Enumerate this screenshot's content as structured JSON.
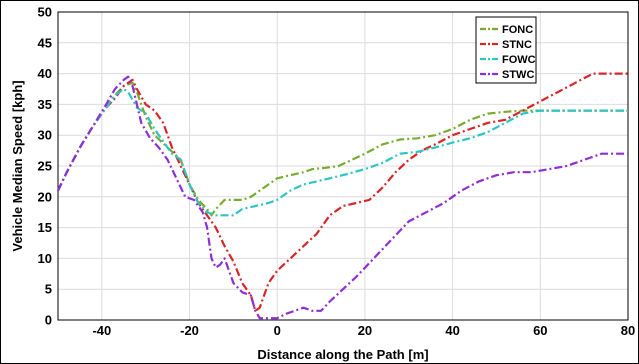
{
  "chart_data": {
    "type": "line",
    "xlabel": "Distance along the Path [m]",
    "ylabel": "Vehicle Median Speed [kph]",
    "xlim": [
      -50,
      80
    ],
    "ylim": [
      0,
      50
    ],
    "xticks": [
      -40,
      -20,
      0,
      20,
      40,
      60,
      80
    ],
    "yticks": [
      0,
      5,
      10,
      15,
      20,
      25,
      30,
      35,
      40,
      45,
      50
    ],
    "grid": true,
    "legend_position": "top-right",
    "series": [
      {
        "name": "FONC",
        "color": "#77ac30",
        "points": [
          [
            -50,
            21
          ],
          [
            -48,
            24
          ],
          [
            -45,
            28
          ],
          [
            -42,
            31.5
          ],
          [
            -39,
            34.5
          ],
          [
            -37,
            36.5
          ],
          [
            -35,
            38
          ],
          [
            -33,
            38.5
          ],
          [
            -32,
            37
          ],
          [
            -30,
            33
          ],
          [
            -28,
            30
          ],
          [
            -25,
            28
          ],
          [
            -22,
            26
          ],
          [
            -20,
            22
          ],
          [
            -18,
            19.5
          ],
          [
            -16,
            18
          ],
          [
            -15,
            17
          ],
          [
            -14,
            18
          ],
          [
            -12,
            19.5
          ],
          [
            -10,
            19.5
          ],
          [
            -8,
            19.5
          ],
          [
            -6,
            20
          ],
          [
            -4,
            21
          ],
          [
            -2,
            22
          ],
          [
            0,
            23
          ],
          [
            3,
            23.5
          ],
          [
            6,
            24
          ],
          [
            8,
            24.5
          ],
          [
            11,
            24.7
          ],
          [
            14,
            25
          ],
          [
            17,
            26
          ],
          [
            20,
            27
          ],
          [
            24,
            28.5
          ],
          [
            28,
            29.3
          ],
          [
            32,
            29.5
          ],
          [
            36,
            30
          ],
          [
            40,
            31
          ],
          [
            44,
            32.5
          ],
          [
            48,
            33.5
          ],
          [
            52,
            33.8
          ],
          [
            56,
            34
          ],
          [
            60,
            34
          ],
          [
            64,
            34
          ],
          [
            70,
            34
          ],
          [
            76,
            34
          ],
          [
            80,
            34
          ]
        ]
      },
      {
        "name": "STNC",
        "color": "#d62728",
        "points": [
          [
            -50,
            21
          ],
          [
            -48,
            24
          ],
          [
            -45,
            28
          ],
          [
            -42,
            31.5
          ],
          [
            -39,
            34.5
          ],
          [
            -37,
            36
          ],
          [
            -35,
            38
          ],
          [
            -33,
            39
          ],
          [
            -32,
            37.5
          ],
          [
            -30,
            35
          ],
          [
            -28,
            34
          ],
          [
            -26,
            32
          ],
          [
            -24,
            28
          ],
          [
            -22,
            25
          ],
          [
            -20,
            22
          ],
          [
            -18,
            19
          ],
          [
            -16,
            17
          ],
          [
            -14,
            15
          ],
          [
            -12,
            12
          ],
          [
            -10,
            9.5
          ],
          [
            -8,
            6
          ],
          [
            -6,
            4
          ],
          [
            -5,
            1.5
          ],
          [
            -4,
            2
          ],
          [
            -3,
            4
          ],
          [
            -2,
            6
          ],
          [
            0,
            8
          ],
          [
            3,
            10
          ],
          [
            6,
            12
          ],
          [
            9,
            14
          ],
          [
            12,
            17
          ],
          [
            15,
            18.5
          ],
          [
            18,
            19
          ],
          [
            21,
            19.5
          ],
          [
            24,
            21.5
          ],
          [
            27,
            24
          ],
          [
            30,
            26
          ],
          [
            33,
            27.5
          ],
          [
            36,
            28.5
          ],
          [
            40,
            30
          ],
          [
            44,
            31
          ],
          [
            48,
            32
          ],
          [
            52,
            32.5
          ],
          [
            56,
            34
          ],
          [
            60,
            35.5
          ],
          [
            64,
            37
          ],
          [
            68,
            38.5
          ],
          [
            72,
            40
          ],
          [
            76,
            40
          ],
          [
            80,
            40
          ]
        ]
      },
      {
        "name": "FOWC",
        "color": "#2ec4c4",
        "points": [
          [
            -50,
            21
          ],
          [
            -48,
            24
          ],
          [
            -45,
            28
          ],
          [
            -42,
            31.5
          ],
          [
            -39,
            34.5
          ],
          [
            -37,
            36.5
          ],
          [
            -35,
            37.5
          ],
          [
            -34,
            37
          ],
          [
            -32,
            34.5
          ],
          [
            -30,
            33.5
          ],
          [
            -28,
            31
          ],
          [
            -26,
            29
          ],
          [
            -24,
            27
          ],
          [
            -22,
            26
          ],
          [
            -20,
            22
          ],
          [
            -18,
            19
          ],
          [
            -16,
            17.5
          ],
          [
            -14,
            17
          ],
          [
            -12,
            17
          ],
          [
            -10,
            17
          ],
          [
            -8,
            18
          ],
          [
            -5,
            18.5
          ],
          [
            -2,
            19
          ],
          [
            0,
            19.5
          ],
          [
            3,
            21
          ],
          [
            6,
            22
          ],
          [
            9,
            22.5
          ],
          [
            12,
            23
          ],
          [
            16,
            23.7
          ],
          [
            20,
            24.5
          ],
          [
            24,
            25.5
          ],
          [
            28,
            27
          ],
          [
            32,
            27.3
          ],
          [
            36,
            28
          ],
          [
            40,
            28.8
          ],
          [
            44,
            29.5
          ],
          [
            48,
            30.5
          ],
          [
            52,
            32
          ],
          [
            56,
            33.5
          ],
          [
            60,
            34
          ],
          [
            64,
            34
          ],
          [
            70,
            34
          ],
          [
            76,
            34
          ],
          [
            80,
            34
          ]
        ]
      },
      {
        "name": "STWC",
        "color": "#8e2fd6",
        "points": [
          [
            -50,
            21
          ],
          [
            -48,
            24
          ],
          [
            -45,
            28
          ],
          [
            -42,
            31.5
          ],
          [
            -39,
            35
          ],
          [
            -37,
            37.5
          ],
          [
            -35,
            39
          ],
          [
            -34,
            39.5
          ],
          [
            -33,
            38
          ],
          [
            -32,
            35
          ],
          [
            -31,
            32
          ],
          [
            -29,
            29.5
          ],
          [
            -27,
            28
          ],
          [
            -25,
            26
          ],
          [
            -23,
            23
          ],
          [
            -21,
            20
          ],
          [
            -19,
            19.5
          ],
          [
            -17,
            17.5
          ],
          [
            -16,
            15
          ],
          [
            -15,
            10
          ],
          [
            -14,
            8.5
          ],
          [
            -13,
            9
          ],
          [
            -12,
            10
          ],
          [
            -11,
            8
          ],
          [
            -10,
            6
          ],
          [
            -8,
            4.5
          ],
          [
            -6,
            4
          ],
          [
            -5,
            1.5
          ],
          [
            -4,
            0.3
          ],
          [
            -2,
            0.3
          ],
          [
            0,
            0.3
          ],
          [
            2,
            1
          ],
          [
            4,
            1.5
          ],
          [
            6,
            2
          ],
          [
            8,
            1.5
          ],
          [
            10,
            1.5
          ],
          [
            12,
            3
          ],
          [
            15,
            5
          ],
          [
            18,
            7
          ],
          [
            22,
            10
          ],
          [
            26,
            13
          ],
          [
            30,
            16
          ],
          [
            34,
            17.5
          ],
          [
            38,
            19
          ],
          [
            42,
            21
          ],
          [
            46,
            22.5
          ],
          [
            50,
            23.5
          ],
          [
            54,
            24
          ],
          [
            58,
            24
          ],
          [
            62,
            24.5
          ],
          [
            66,
            25
          ],
          [
            70,
            26
          ],
          [
            74,
            27
          ],
          [
            80,
            27
          ]
        ]
      }
    ]
  }
}
